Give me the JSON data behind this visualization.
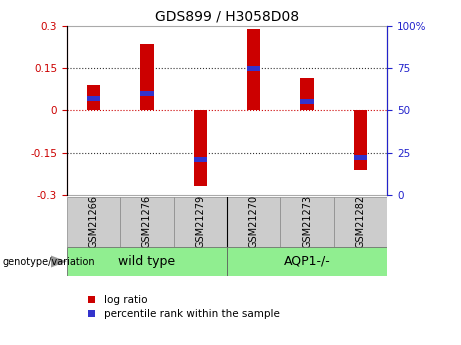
{
  "title": "GDS899 / H3058D08",
  "samples": [
    "GSM21266",
    "GSM21276",
    "GSM21279",
    "GSM21270",
    "GSM21273",
    "GSM21282"
  ],
  "log_ratios": [
    0.09,
    0.235,
    -0.27,
    0.29,
    0.115,
    -0.21
  ],
  "percentile_ranks_pct": [
    57,
    60,
    21,
    75,
    55,
    22
  ],
  "group_boundaries": [
    3
  ],
  "group_labels": [
    "wild type",
    "AQP1-/-"
  ],
  "group_colors": [
    "#90ee90",
    "#90ee90"
  ],
  "ylim": [
    -0.3,
    0.3
  ],
  "yticks_left": [
    -0.3,
    -0.15,
    0.0,
    0.15,
    0.3
  ],
  "yticks_left_labels": [
    "-0.3",
    "-0.15",
    "0",
    "0.15",
    "0.3"
  ],
  "right_tick_pos": [
    -0.3,
    -0.15,
    0.0,
    0.15,
    0.3
  ],
  "right_tick_labels": [
    "0",
    "25",
    "50",
    "75",
    "100%"
  ],
  "bar_color": "#cc0000",
  "blue_color": "#3333cc",
  "bar_width": 0.25,
  "hline_positions": [
    -0.15,
    0.0,
    0.15
  ],
  "hline0_color": "#cc0000",
  "hline_color": "#333333",
  "ylabel_left_color": "#cc0000",
  "ylabel_right_color": "#2222cc",
  "sample_box_color": "#cccccc",
  "group_label_text": "genotype/variation",
  "legend_red": "log ratio",
  "legend_blue": "percentile rank within the sample",
  "title_fontsize": 10,
  "tick_fontsize": 7.5,
  "label_fontsize": 7
}
